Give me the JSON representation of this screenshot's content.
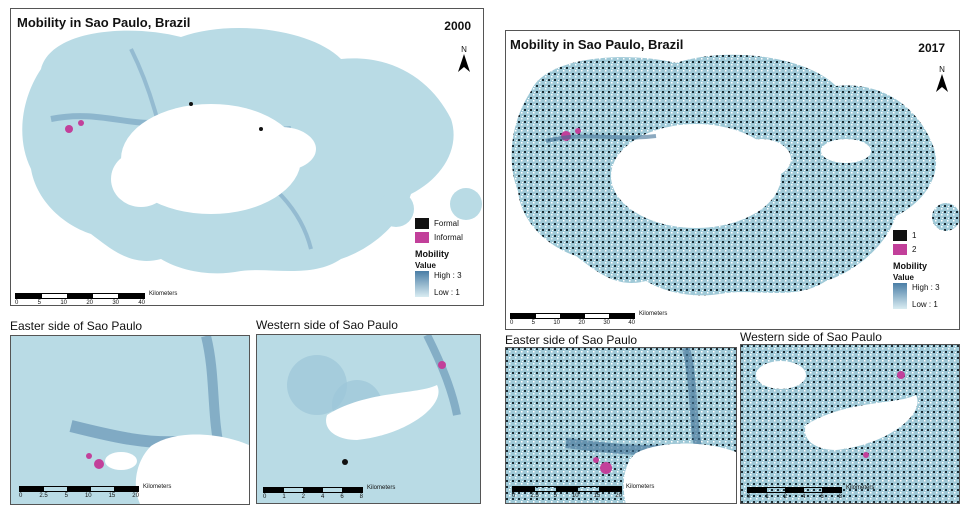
{
  "colors": {
    "mobility_high": "#4a7ea6",
    "mobility_low": "#d9ecf2",
    "base_fill": "#b9dbe5",
    "formal": "#111111",
    "informal": "#c2409a"
  },
  "left_panel": {
    "title": "Mobility in Sao Paulo, Brazil",
    "year": "2000",
    "north_label": "N",
    "legend": {
      "class_1": "Formal",
      "class_2": "Informal",
      "mobility_heading": "Mobility",
      "value_heading": "Value",
      "high": "High : 3",
      "low": "Low : 1"
    },
    "scale": {
      "ticks": [
        "0",
        "5",
        "10",
        "20",
        "30",
        "40"
      ],
      "unit": "Kilometers"
    },
    "inset_east": {
      "title": "Easter side of Sao Paulo",
      "scale": {
        "ticks": [
          "0",
          "2.5",
          "5",
          "10",
          "15",
          "20"
        ],
        "unit": "Kilometers"
      }
    },
    "inset_west": {
      "title": "Western side of Sao Paulo",
      "scale": {
        "ticks": [
          "0",
          "1",
          "2",
          "4",
          "6",
          "8"
        ],
        "unit": "Kilometers"
      }
    }
  },
  "right_panel": {
    "title": "Mobility in Sao Paulo, Brazil",
    "year": "2017",
    "north_label": "N",
    "legend": {
      "class_1": "1",
      "class_2": "2",
      "mobility_heading": "Mobility",
      "value_heading": "Value",
      "high": "High : 3",
      "low": "Low : 1"
    },
    "scale": {
      "ticks": [
        "0",
        "5",
        "10",
        "20",
        "30",
        "40"
      ],
      "unit": "Kilometers"
    },
    "inset_east": {
      "title": "Easter side of Sao Paulo",
      "scale": {
        "ticks": [
          "0",
          "2.5",
          "5",
          "10",
          "15",
          "20"
        ],
        "unit": "Kilometers"
      }
    },
    "inset_west": {
      "title": "Western side of Sao Paulo",
      "scale": {
        "ticks": [
          "0",
          "1",
          "2",
          "4",
          "6",
          "8"
        ],
        "unit": "Kilometers"
      }
    }
  }
}
